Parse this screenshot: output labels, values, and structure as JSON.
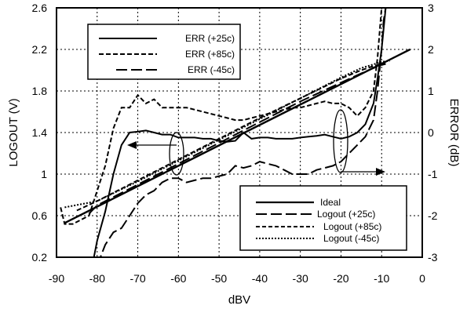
{
  "chart_data": {
    "type": "line",
    "xlabel": "dBV",
    "ylabel_left": "LOGOUT (V)",
    "ylabel_right": "ERROR (dB)",
    "xlim": [
      -90,
      0
    ],
    "ylim_left": [
      0.2,
      2.6
    ],
    "ylim_right": [
      -3,
      3
    ],
    "x_ticks": [
      "-90",
      "-80",
      "-70",
      "-60",
      "-50",
      "-40",
      "-30",
      "-20",
      "-10",
      "0"
    ],
    "y_left_ticks": [
      "0.2",
      "0.6",
      "1",
      "1.4",
      "1.8",
      "2.2",
      "2.6"
    ],
    "y_right_ticks": [
      "-3",
      "-2",
      "-1",
      "0",
      "1",
      "2",
      "3"
    ],
    "grid": "dotted",
    "series": [
      {
        "name": "Ideal",
        "axis": "left",
        "style": "solid",
        "x": [
          -88,
          -3
        ],
        "y": [
          0.53,
          2.2
        ]
      },
      {
        "name": "Logout (+25c)",
        "axis": "left",
        "style": "longdash",
        "x": [
          -82,
          -80,
          -70,
          -60,
          -50,
          -40,
          -30,
          -20,
          -15,
          -12,
          -10,
          -9
        ],
        "y": [
          0.62,
          0.7,
          0.9,
          1.1,
          1.3,
          1.5,
          1.7,
          1.88,
          1.97,
          2.02,
          2.05,
          2.06
        ]
      },
      {
        "name": "Logout (+85c)",
        "axis": "left",
        "style": "shortdash",
        "x": [
          -85,
          -80,
          -70,
          -60,
          -50,
          -40,
          -30,
          -20,
          -15,
          -12,
          -10,
          -9
        ],
        "y": [
          0.65,
          0.74,
          0.94,
          1.14,
          1.34,
          1.54,
          1.73,
          1.92,
          2.0,
          2.04,
          2.06,
          2.06
        ]
      },
      {
        "name": "Logout (-45c)",
        "axis": "left",
        "style": "dotted",
        "x": [
          -88,
          -80,
          -70,
          -60,
          -50,
          -40,
          -30,
          -20,
          -15,
          -10,
          -8
        ],
        "y": [
          0.68,
          0.74,
          0.93,
          1.13,
          1.33,
          1.53,
          1.73,
          1.93,
          2.02,
          2.08,
          2.09
        ]
      },
      {
        "name": "ERR (+25c)",
        "axis": "right",
        "style": "solid",
        "x": [
          -81,
          -80,
          -78,
          -76,
          -74,
          -72,
          -70,
          -68,
          -66,
          -64,
          -62,
          -60,
          -58,
          -56,
          -54,
          -52,
          -50,
          -48,
          -46,
          -44,
          -42,
          -40,
          -38,
          -36,
          -34,
          -32,
          -30,
          -28,
          -26,
          -24,
          -22,
          -20,
          -18,
          -16,
          -14,
          -12,
          -11,
          -10,
          -9
        ],
        "y": [
          -3.1,
          -2.6,
          -1.9,
          -1.0,
          -0.3,
          0.0,
          0.02,
          0.05,
          0.0,
          -0.05,
          -0.05,
          -0.12,
          -0.12,
          -0.12,
          -0.15,
          -0.15,
          -0.2,
          -0.22,
          -0.2,
          0.0,
          -0.15,
          -0.12,
          -0.12,
          -0.15,
          -0.15,
          -0.15,
          -0.12,
          -0.1,
          -0.08,
          -0.05,
          -0.1,
          -0.15,
          -0.1,
          0.0,
          0.2,
          0.7,
          1.3,
          2.0,
          3.0
        ]
      },
      {
        "name": "ERR (+85c)",
        "axis": "right",
        "style": "shortdash",
        "x": [
          -89,
          -88,
          -86,
          -84,
          -82,
          -80,
          -78,
          -76,
          -74,
          -72,
          -70,
          -68,
          -66,
          -64,
          -62,
          -60,
          -58,
          -56,
          -54,
          -52,
          -50,
          -48,
          -46,
          -44,
          -42,
          -40,
          -38,
          -36,
          -34,
          -32,
          -30,
          -28,
          -26,
          -24,
          -22,
          -20,
          -18,
          -16,
          -14,
          -12,
          -11,
          -10
        ],
        "y": [
          -1.8,
          -2.2,
          -2.2,
          -2.1,
          -2.0,
          -1.4,
          -0.8,
          0.1,
          0.6,
          0.6,
          0.9,
          0.7,
          0.8,
          0.6,
          0.6,
          0.6,
          0.6,
          0.55,
          0.5,
          0.45,
          0.4,
          0.35,
          0.3,
          0.3,
          0.35,
          0.4,
          0.45,
          0.5,
          0.55,
          0.6,
          0.6,
          0.65,
          0.7,
          0.75,
          0.7,
          0.7,
          0.6,
          0.4,
          0.6,
          1.0,
          1.8,
          3.0
        ]
      },
      {
        "name": "ERR (-45c)",
        "axis": "right",
        "style": "longdash",
        "x": [
          -80,
          -78,
          -76,
          -74,
          -72,
          -70,
          -68,
          -66,
          -64,
          -62,
          -60,
          -58,
          -56,
          -54,
          -52,
          -50,
          -48,
          -46,
          -44,
          -42,
          -40,
          -38,
          -36,
          -34,
          -32,
          -30,
          -28,
          -26,
          -24,
          -22,
          -20,
          -18,
          -16,
          -14,
          -12,
          -11,
          -10,
          -9.5,
          -9
        ],
        "y": [
          -3.2,
          -2.7,
          -2.4,
          -2.3,
          -2.0,
          -1.7,
          -1.5,
          -1.4,
          -1.2,
          -1.1,
          -1.1,
          -1.2,
          -1.15,
          -1.1,
          -1.1,
          -1.05,
          -1.0,
          -0.8,
          -0.85,
          -0.8,
          -0.7,
          -0.75,
          -0.8,
          -0.9,
          -1.0,
          -1.0,
          -1.0,
          -0.9,
          -0.85,
          -0.8,
          -0.7,
          -0.5,
          -0.3,
          -0.1,
          0.3,
          1.0,
          2.0,
          2.7,
          3.0
        ]
      }
    ],
    "legend_top": [
      "ERR (+25c)",
      "ERR (+85c)",
      "ERR (-45c)"
    ],
    "legend_bottom": [
      "Ideal",
      "Logout (+25c)",
      "Logout (+85c)",
      "Logout (-45c)"
    ]
  }
}
